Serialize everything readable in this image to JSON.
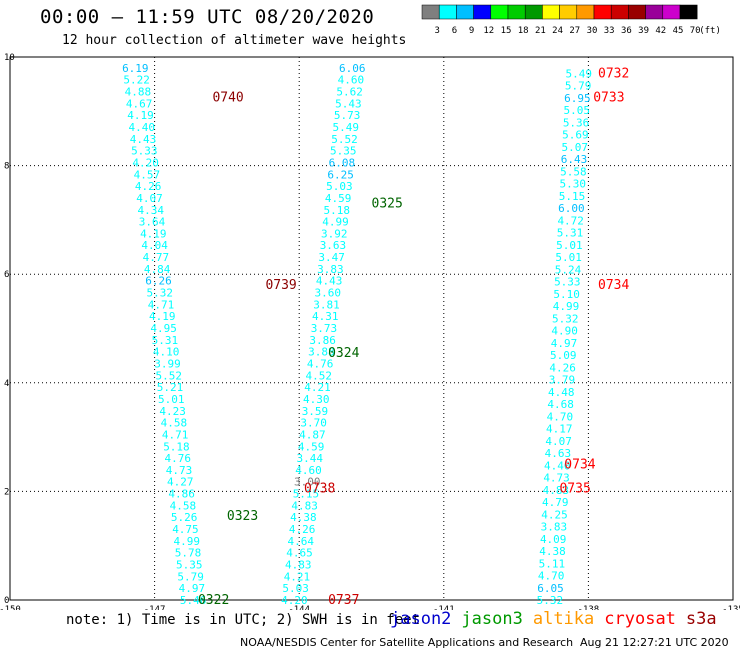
{
  "header": {
    "title": "00:00 – 11:59 UTC 08/20/2020",
    "subtitle": "12 hour collection of altimeter wave heights"
  },
  "colorbar": {
    "unit": "(ft)",
    "bins": [
      {
        "label": "3",
        "color": "#7f7f7f"
      },
      {
        "label": "6",
        "color": "#00ffff"
      },
      {
        "label": "9",
        "color": "#00bfff"
      },
      {
        "label": "12",
        "color": "#0000ff"
      },
      {
        "label": "15",
        "color": "#00ff00"
      },
      {
        "label": "18",
        "color": "#00cc00"
      },
      {
        "label": "21",
        "color": "#009900"
      },
      {
        "label": "24",
        "color": "#ffff00"
      },
      {
        "label": "27",
        "color": "#ffcc00"
      },
      {
        "label": "30",
        "color": "#ff9900"
      },
      {
        "label": "33",
        "color": "#ff0000"
      },
      {
        "label": "36",
        "color": "#cc0000"
      },
      {
        "label": "39",
        "color": "#990000"
      },
      {
        "label": "42",
        "color": "#990099"
      },
      {
        "label": "45",
        "color": "#cc00cc"
      },
      {
        "label": "70",
        "color": "#000000"
      }
    ]
  },
  "chart_data": {
    "type": "scatter",
    "xlim": [
      -150,
      -135
    ],
    "ylim": [
      0,
      10
    ],
    "xticks": [
      -150,
      -147,
      -144,
      -141,
      -138,
      -135
    ],
    "xtick_labels": [
      "-150",
      "-147",
      "-144",
      "-141",
      "-138",
      "-135"
    ],
    "yticks": [
      0,
      2,
      4,
      6,
      8,
      10
    ],
    "ytick_labels": [
      "0",
      "2",
      "4",
      "6",
      "8",
      "10"
    ],
    "grid": true,
    "tracks": [
      {
        "from": [
          -147.4,
          9.8
        ],
        "to": [
          -146.2,
          0.0
        ],
        "values": [
          "6.19",
          "5.22",
          "4.88",
          "4.67",
          "4.19",
          "4.40",
          "4.43",
          "5.33",
          "4.20",
          "4.57",
          "4.26",
          "4.07",
          "4.34",
          "3.64",
          "4.19",
          "4.04",
          "4.77",
          "4.84",
          "6.26",
          "5.32",
          "4.71",
          "4.19",
          "4.95",
          "5.31",
          "4.10",
          "3.99",
          "5.52",
          "5.21",
          "5.01",
          "4.23",
          "4.58",
          "4.71",
          "5.18",
          "4.76",
          "4.73",
          "4.27",
          "4.86",
          "4.58",
          "5.26",
          "4.75",
          "4.99",
          "5.78",
          "5.35",
          "5.79",
          "4.97",
          "5.46"
        ]
      },
      {
        "from": [
          -142.9,
          9.8
        ],
        "to": [
          -144.1,
          0.0
        ],
        "values": [
          "6.06",
          "4.60",
          "5.62",
          "5.43",
          "5.73",
          "5.49",
          "5.52",
          "5.35",
          "6.08",
          "6.25",
          "5.03",
          "4.59",
          "5.18",
          "4.99",
          "3.92",
          "3.63",
          "3.47",
          "3.83",
          "4.43",
          "3.60",
          "3.81",
          "4.31",
          "3.73",
          "3.86",
          "3.88",
          "4.76",
          "4.52",
          "4.21",
          "4.30",
          "3.59",
          "3.70",
          "4.87",
          "4.59",
          "3.44",
          "4.60",
          "3.00",
          "5.15",
          "4.83",
          "4.38",
          "4.26",
          "4.64",
          "4.65",
          "4.83",
          "4.21",
          "5.03",
          "4.20"
        ]
      },
      {
        "from": [
          -138.2,
          9.7
        ],
        "to": [
          -138.8,
          0.0
        ],
        "values": [
          "5.49",
          "5.79",
          "6.95",
          "5.05",
          "5.36",
          "5.69",
          "5.07",
          "6.43",
          "5.58",
          "5.30",
          "5.15",
          "6.00",
          "4.72",
          "5.31",
          "5.01",
          "5.01",
          "5.24",
          "5.33",
          "5.10",
          "4.99",
          "5.32",
          "4.90",
          "4.97",
          "5.09",
          "4.26",
          "3.79",
          "4.48",
          "4.68",
          "4.70",
          "4.17",
          "4.07",
          "4.63",
          "4.40",
          "4.73",
          "4.83",
          "4.79",
          "4.25",
          "3.83",
          "4.09",
          "4.38",
          "5.11",
          "4.70",
          "6.05",
          "5.32"
        ]
      }
    ],
    "pass_labels": [
      {
        "text": "0740",
        "x": -145.8,
        "y": 9.25,
        "color": "#8b0000"
      },
      {
        "text": "0325",
        "x": -142.5,
        "y": 7.3,
        "color": "#006400"
      },
      {
        "text": "0739",
        "x": -144.7,
        "y": 5.8,
        "color": "#8b0000"
      },
      {
        "text": "0324",
        "x": -143.4,
        "y": 4.55,
        "color": "#006400"
      },
      {
        "text": "0738",
        "x": -143.9,
        "y": 2.05,
        "color": "#cc0000"
      },
      {
        "text": "0323",
        "x": -145.5,
        "y": 1.55,
        "color": "#006400"
      },
      {
        "text": "0322",
        "x": -146.1,
        "y": 0.0,
        "color": "#006400"
      },
      {
        "text": "0737",
        "x": -143.4,
        "y": 0.0,
        "color": "#cc0000"
      },
      {
        "text": "0732",
        "x": -137.8,
        "y": 9.7,
        "color": "#ff0000"
      },
      {
        "text": "0733",
        "x": -137.9,
        "y": 9.25,
        "color": "#ff0000"
      },
      {
        "text": "0734",
        "x": -137.8,
        "y": 5.8,
        "color": "#ff0000"
      },
      {
        "text": "0734",
        "x": -138.5,
        "y": 2.5,
        "color": "#ff0000"
      },
      {
        "text": "0735",
        "x": -138.6,
        "y": 2.05,
        "color": "#ff0000"
      }
    ]
  },
  "footer": {
    "note": "note: 1) Time is in UTC; 2) SWH is in feet",
    "satellites": [
      {
        "name": "jason2",
        "color": "#0000cc"
      },
      {
        "name": "jason3",
        "color": "#009900"
      },
      {
        "name": "altika",
        "color": "#ff9900"
      },
      {
        "name": "cryosat",
        "color": "#ff0000"
      },
      {
        "name": "s3a",
        "color": "#990000"
      }
    ],
    "credit": "NOAA/NESDIS Center for Satellite Applications and Research",
    "generated": "Aug 21 12:27:21 UTC 2020"
  }
}
